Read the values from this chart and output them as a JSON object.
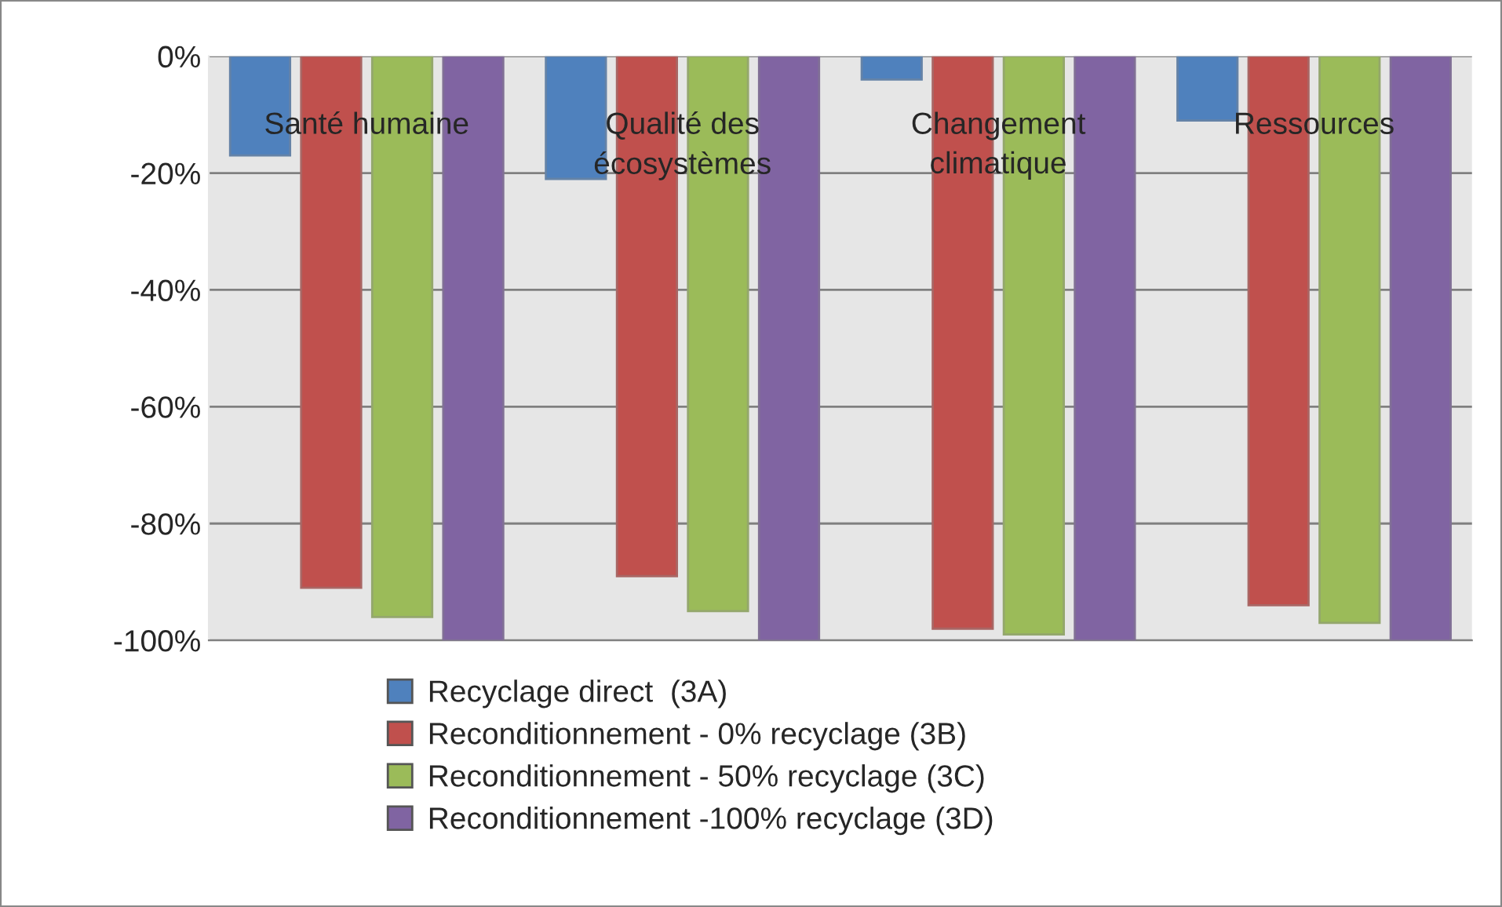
{
  "chart_data": {
    "type": "bar",
    "categories": [
      "Santé humaine",
      "Qualité des\nécosystèmes",
      "Changement\nclimatique",
      "Ressources"
    ],
    "series": [
      {
        "name": "Recyclage direct  (3A)",
        "color": "#4f81bd",
        "values": [
          -17,
          -21,
          -4,
          -11
        ]
      },
      {
        "name": "Reconditionnement - 0% recyclage (3B)",
        "color": "#c0504d",
        "values": [
          -91,
          -89,
          -98,
          -94
        ]
      },
      {
        "name": "Reconditionnement - 50% recyclage (3C)",
        "color": "#9bbb59",
        "values": [
          -96,
          -95,
          -99,
          -97
        ]
      },
      {
        "name": "Reconditionnement -100% recyclage (3D)",
        "color": "#8064a2",
        "values": [
          -100,
          -100,
          -100,
          -100
        ]
      }
    ],
    "ylim": [
      -100,
      0
    ],
    "yticks": [
      {
        "value": 0,
        "label": "0%"
      },
      {
        "value": -20,
        "label": "-20%"
      },
      {
        "value": -40,
        "label": "-40%"
      },
      {
        "value": -60,
        "label": "-60%"
      },
      {
        "value": -80,
        "label": "-80%"
      },
      {
        "value": -100,
        "label": "-100%"
      }
    ],
    "grid": "y",
    "legend": "bottom"
  }
}
